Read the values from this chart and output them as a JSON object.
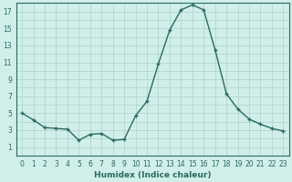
{
  "x": [
    0,
    1,
    2,
    3,
    4,
    5,
    6,
    7,
    8,
    9,
    10,
    11,
    12,
    13,
    14,
    15,
    16,
    17,
    18,
    19,
    20,
    21,
    22,
    23
  ],
  "y": [
    5.0,
    4.2,
    3.3,
    3.2,
    3.1,
    1.8,
    2.5,
    2.6,
    1.8,
    1.9,
    4.7,
    6.4,
    10.8,
    14.8,
    17.2,
    17.8,
    17.2,
    12.5,
    7.3,
    5.5,
    4.3,
    3.7,
    3.2,
    2.9
  ],
  "xlabel": "Humidex (Indice chaleur)",
  "bg_color": "#d0eeea",
  "line_color": "#2a6b5e",
  "grid_color": "#b0d0cc",
  "ylim": [
    0,
    18
  ],
  "xlim": [
    -0.5,
    23.5
  ],
  "yticks": [
    1,
    3,
    5,
    7,
    9,
    11,
    13,
    15,
    17
  ],
  "xticks": [
    0,
    1,
    2,
    3,
    4,
    5,
    6,
    7,
    8,
    9,
    10,
    11,
    12,
    13,
    14,
    15,
    16,
    17,
    18,
    19,
    20,
    21,
    22,
    23
  ],
  "marker": "P",
  "marker_size": 2.5,
  "line_width": 1.0,
  "xlabel_fontsize": 6.5,
  "tick_fontsize": 5.5
}
